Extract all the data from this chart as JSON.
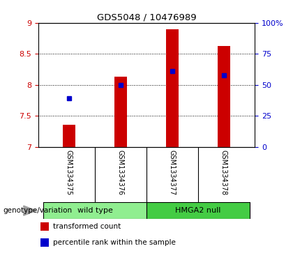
{
  "title": "GDS5048 / 10476989",
  "samples": [
    "GSM1334375",
    "GSM1334376",
    "GSM1334377",
    "GSM1334378"
  ],
  "bar_values": [
    7.35,
    8.13,
    8.9,
    8.62
  ],
  "percentile_values": [
    7.78,
    8.0,
    8.22,
    8.15
  ],
  "ymin": 7.0,
  "ymax": 9.0,
  "yticks": [
    7.0,
    7.5,
    8.0,
    8.5,
    9.0
  ],
  "right_yticks": [
    0,
    25,
    50,
    75,
    100
  ],
  "right_ytick_labels": [
    "0",
    "25",
    "50",
    "75",
    "100%"
  ],
  "bar_color": "#cc0000",
  "dot_color": "#0000cc",
  "groups": [
    {
      "label": "wild type",
      "samples": [
        0,
        1
      ],
      "color": "#90ee90"
    },
    {
      "label": "HMGA2 null",
      "samples": [
        2,
        3
      ],
      "color": "#44cc44"
    }
  ],
  "genotype_label": "genotype/variation",
  "legend_items": [
    {
      "label": "transformed count",
      "color": "#cc0000"
    },
    {
      "label": "percentile rank within the sample",
      "color": "#0000cc"
    }
  ],
  "bar_width": 0.25,
  "tick_label_color_left": "#cc0000",
  "tick_label_color_right": "#0000cc",
  "sample_box_color": "#c8c8c8",
  "plot_bg": "#ffffff"
}
